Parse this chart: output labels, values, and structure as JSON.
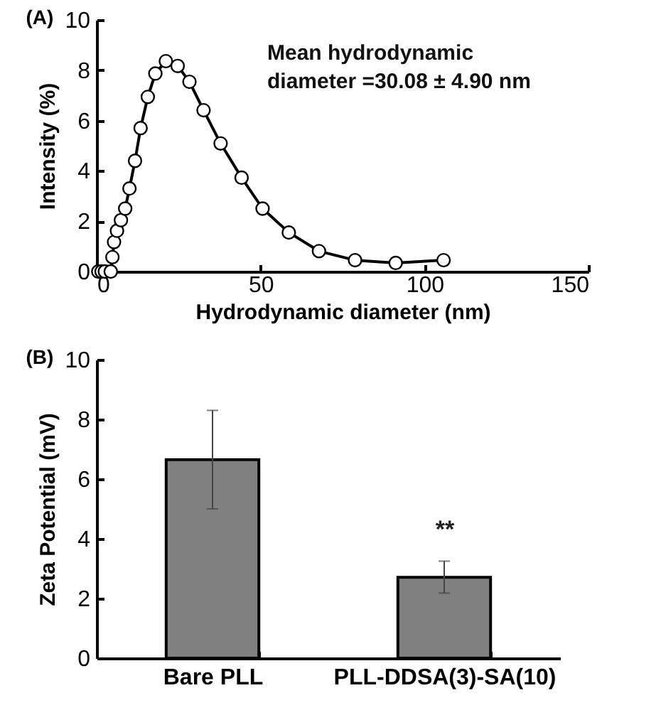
{
  "chart_data": [
    {
      "type": "line",
      "title": "(A)",
      "xlabel": "Hydrodynamic diameter (nm)",
      "ylabel": "Intensity (%)",
      "xlim": [
        0,
        150
      ],
      "xticks": [
        0,
        50,
        100,
        150
      ],
      "ylim": [
        0,
        10
      ],
      "yticks": [
        0,
        2,
        4,
        6,
        8,
        10
      ],
      "grid": false,
      "marker": "circle",
      "line_style": "solid",
      "annotations": [
        "Mean hydrodynamic diameter =30.08 ± 4.90 nm"
      ],
      "series": [
        {
          "color": "#000000",
          "x": [
            0.5,
            1.5,
            2.5,
            4.3,
            4.8,
            5.3,
            6.2,
            7.4,
            8.7,
            10.0,
            11.7,
            13.4,
            15.6,
            17.9,
            21.1,
            24.7,
            28.3,
            32.6,
            37.8,
            44.2,
            50.6,
            58.6,
            67.8,
            78.8,
            91.2,
            105.8
          ],
          "values": [
            0,
            0,
            0,
            0,
            0.57,
            1.17,
            1.62,
            2.04,
            2.5,
            3.3,
            4.4,
            5.7,
            6.94,
            7.87,
            8.36,
            8.17,
            7.54,
            6.41,
            5.09,
            3.73,
            2.5,
            1.55,
            0.81,
            0.45,
            0.34,
            0.45
          ]
        }
      ]
    },
    {
      "type": "bar",
      "title": "(B)",
      "ylabel": "Zeta Potential (mV)",
      "categories": [
        "Bare PLL",
        "PLL-DDSA(3)-SA(10)"
      ],
      "ylim": [
        0,
        10
      ],
      "yticks": [
        0,
        2,
        4,
        6,
        8,
        10
      ],
      "grid": false,
      "series": [
        {
          "color": "#808080",
          "values": [
            6.65,
            2.71
          ],
          "errors": [
            [
              5.0,
              8.3
            ],
            [
              2.18,
              3.25
            ]
          ]
        }
      ],
      "annotations": [
        "**"
      ]
    }
  ]
}
